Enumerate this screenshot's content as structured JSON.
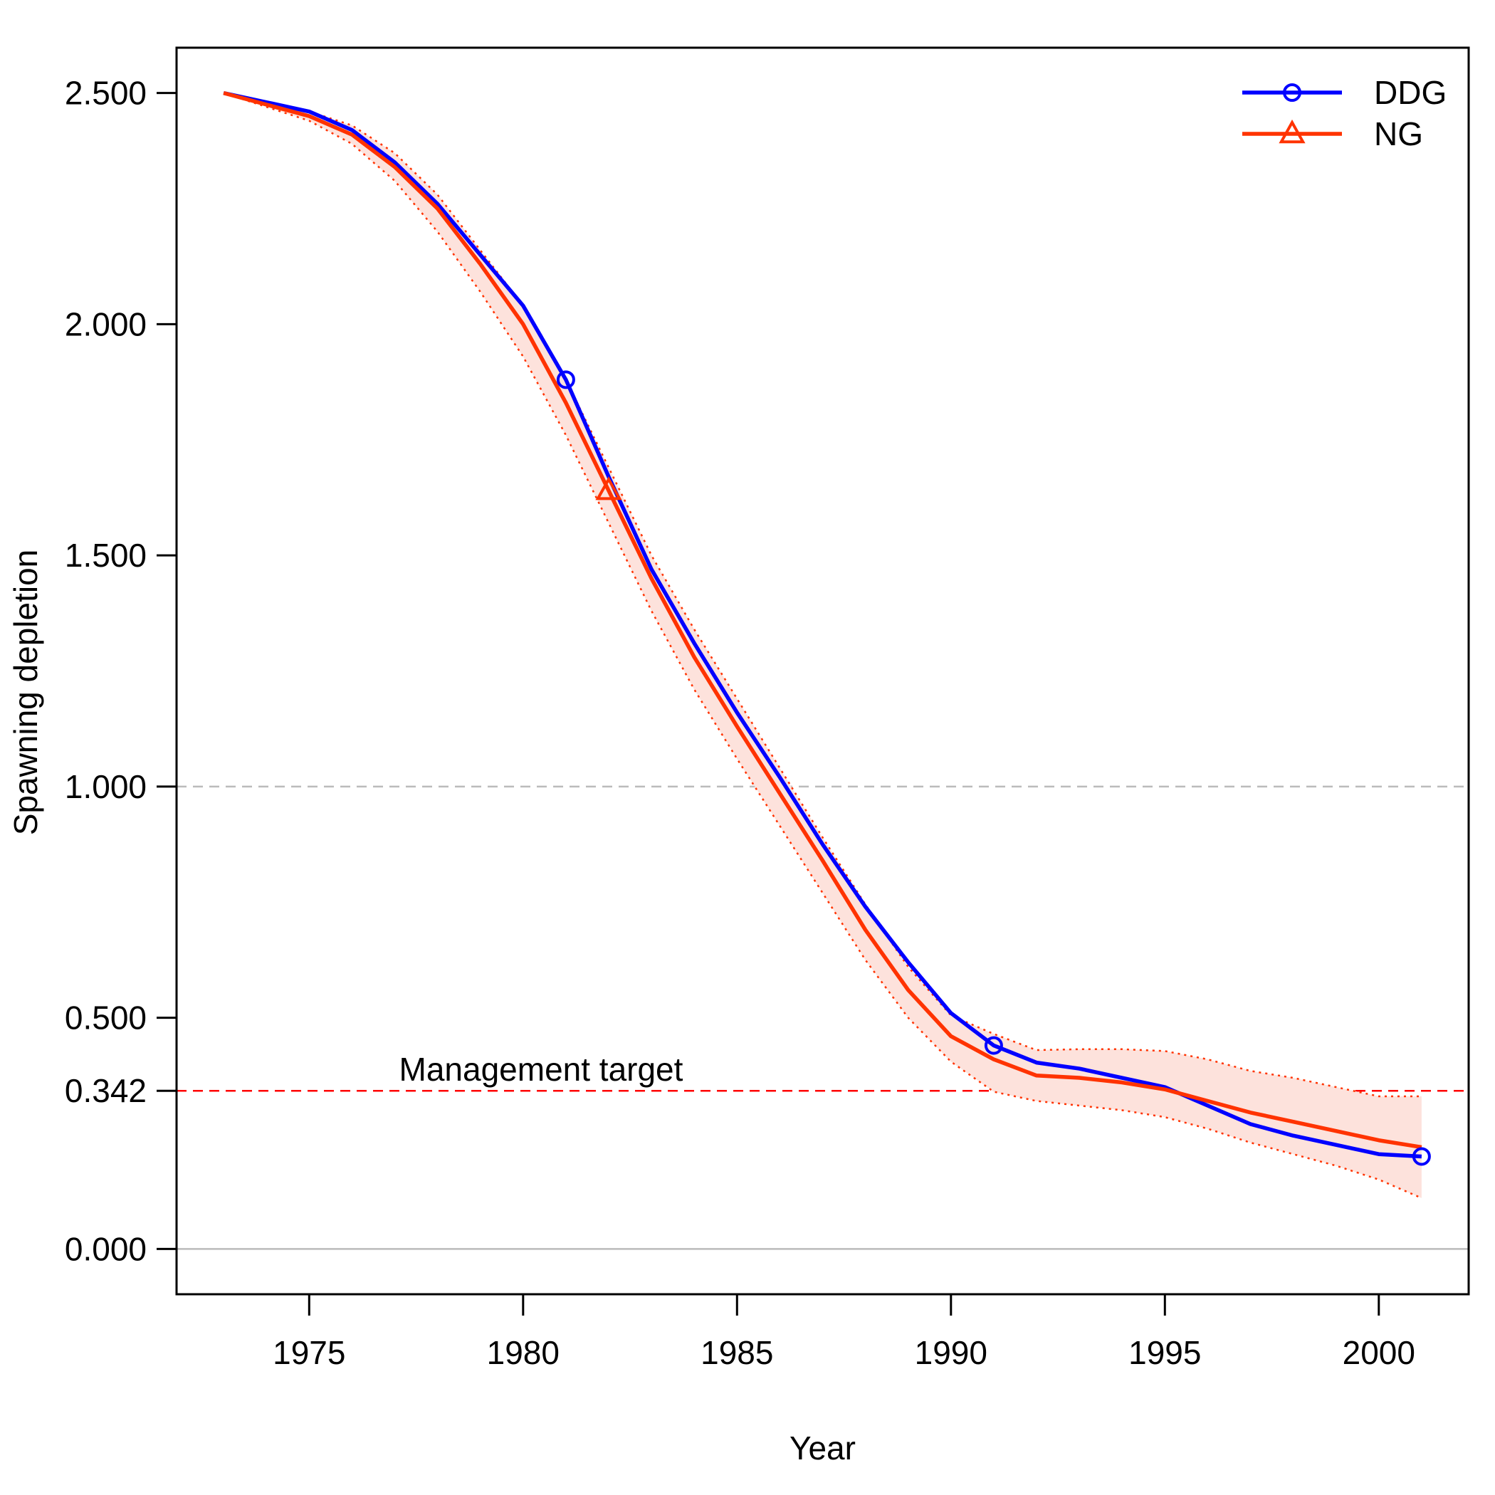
{
  "chart_data": {
    "type": "line",
    "title": "",
    "xlabel": "Year",
    "ylabel": "Spawning depletion",
    "xlim": [
      1971.9,
      2002.1
    ],
    "ylim": [
      -0.098,
      2.598
    ],
    "xticks": [
      1975,
      1980,
      1985,
      1990,
      1995,
      2000
    ],
    "xtick_labels": [
      "1975",
      "1980",
      "1985",
      "1990",
      "1995",
      "2000"
    ],
    "yticks": [
      0.0,
      0.342,
      0.5,
      1.0,
      1.5,
      2.0,
      2.5
    ],
    "ytick_labels": [
      "0.000",
      "0.342",
      "0.500",
      "1.000",
      "1.500",
      "2.000",
      "2.500"
    ],
    "x": [
      1973,
      1974,
      1975,
      1976,
      1977,
      1978,
      1979,
      1980,
      1981,
      1982,
      1983,
      1984,
      1985,
      1986,
      1987,
      1988,
      1989,
      1990,
      1991,
      1992,
      1993,
      1994,
      1995,
      1996,
      1997,
      1998,
      1999,
      2000,
      2001
    ],
    "series": [
      {
        "name": "DDG",
        "color": "#0000ff",
        "marker": "circle",
        "marker_x": [
          1981,
          1991,
          2001
        ],
        "values": [
          2.5,
          2.48,
          2.46,
          2.42,
          2.35,
          2.26,
          2.15,
          2.04,
          1.88,
          1.67,
          1.47,
          1.31,
          1.16,
          1.02,
          0.875,
          0.74,
          0.62,
          0.51,
          0.44,
          0.403,
          0.39,
          0.37,
          0.35,
          0.31,
          0.27,
          0.245,
          0.225,
          0.205,
          0.2
        ]
      },
      {
        "name": "NG",
        "color": "#ff3300",
        "marker": "triangle",
        "marker_x": [
          1982
        ],
        "values": [
          2.5,
          2.475,
          2.45,
          2.41,
          2.34,
          2.25,
          2.13,
          2.0,
          1.83,
          1.64,
          1.45,
          1.28,
          1.13,
          0.985,
          0.84,
          0.69,
          0.56,
          0.46,
          0.41,
          0.375,
          0.37,
          0.36,
          0.345,
          0.32,
          0.295,
          0.275,
          0.255,
          0.235,
          0.22
        ],
        "ci_lower": [
          2.5,
          2.47,
          2.44,
          2.39,
          2.31,
          2.2,
          2.07,
          1.93,
          1.76,
          1.57,
          1.38,
          1.21,
          1.06,
          0.915,
          0.77,
          0.625,
          0.5,
          0.405,
          0.34,
          0.32,
          0.31,
          0.3,
          0.285,
          0.26,
          0.23,
          0.205,
          0.18,
          0.15,
          0.11
        ],
        "ci_upper": [
          2.5,
          2.48,
          2.46,
          2.43,
          2.37,
          2.28,
          2.16,
          2.04,
          1.88,
          1.69,
          1.5,
          1.34,
          1.19,
          1.04,
          0.89,
          0.745,
          0.61,
          0.505,
          0.465,
          0.43,
          0.432,
          0.432,
          0.428,
          0.41,
          0.385,
          0.37,
          0.35,
          0.33,
          0.33
        ]
      }
    ],
    "reference_lines": [
      {
        "y": 1.0,
        "style": "dashed",
        "color": "#bbbbbb"
      },
      {
        "y": 0.342,
        "style": "dashed",
        "color": "#ff0000",
        "label": "Management target",
        "label_x": 1977.1
      },
      {
        "y": 0.0,
        "style": "solid",
        "color": "#bbbbbb"
      }
    ],
    "ci_fill_color": "#fde2dc",
    "legend_position": "top-right"
  }
}
